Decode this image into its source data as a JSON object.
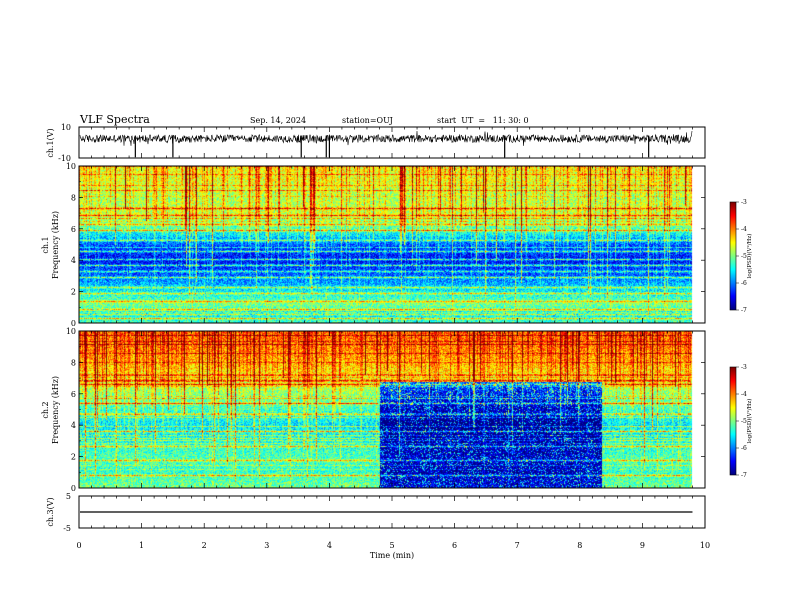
{
  "header": {
    "title": "VLF Spectra",
    "date": "Sep. 14, 2024",
    "station": "station=OUJ",
    "start": "start  UT  =   11: 30: 0"
  },
  "chart_data": [
    {
      "type": "line",
      "id": "ch1-waveform",
      "ylabel": "ch.1(V)",
      "yticks": [
        "10",
        "-10"
      ],
      "ylim": [
        -10,
        10
      ],
      "xlim": [
        0,
        10
      ],
      "baseline": 2.5,
      "spikes_min": [
        0.9,
        1.5,
        3.55,
        3.95,
        4.0,
        6.8,
        9.1
      ],
      "data_end_min": 9.8
    },
    {
      "type": "heatmap",
      "id": "ch1-spectrogram",
      "ylabel": "ch.1\nFrequency (kHz)",
      "ylabel_line1": "ch.1",
      "ylabel_line2": "Frequency (kHz)",
      "yticks": [
        "0",
        "2",
        "4",
        "6",
        "8",
        "10"
      ],
      "ylim": [
        0,
        10
      ],
      "xlim": [
        0,
        10
      ],
      "data_end_min": 9.8,
      "colorbar": {
        "label": "log(PSD)(V²/Hz)",
        "ticks": [
          "-3",
          "-4",
          "-5",
          "-6",
          "-7"
        ],
        "range": [
          -7,
          -3
        ]
      },
      "profile_khz": [
        [
          0,
          -5.2
        ],
        [
          0.6,
          -5.6
        ],
        [
          1.2,
          -5.0
        ],
        [
          2.0,
          -5.5
        ],
        [
          3.0,
          -6.1
        ],
        [
          4.0,
          -6.5
        ],
        [
          5.0,
          -6.2
        ],
        [
          6.0,
          -5.3
        ],
        [
          7.0,
          -4.8
        ],
        [
          8.0,
          -4.9
        ],
        [
          9.0,
          -4.7
        ],
        [
          10.0,
          -4.6
        ]
      ],
      "tones_khz": [
        0.3,
        0.6,
        0.9,
        1.4,
        1.9,
        2.3,
        2.9,
        3.3,
        3.7,
        4.1,
        4.6,
        5.3,
        5.9,
        6.3,
        6.9,
        7.3
      ]
    },
    {
      "type": "heatmap",
      "id": "ch2-spectrogram",
      "ylabel": "ch.2\nFrequency (kHz)",
      "ylabel_line1": "ch.2",
      "ylabel_line2": "Frequency (kHz)",
      "yticks": [
        "0",
        "2",
        "4",
        "6",
        "8",
        "10"
      ],
      "ylim": [
        0,
        10
      ],
      "xlim": [
        0,
        10
      ],
      "data_end_min": 9.8,
      "colorbar": {
        "label": "log(PSD)(V²/Hz)",
        "ticks": [
          "-3",
          "-4",
          "-5",
          "-6",
          "-7"
        ],
        "range": [
          -7,
          -3
        ]
      },
      "profile_khz": [
        [
          0,
          -5.0
        ],
        [
          1.0,
          -5.3
        ],
        [
          2.0,
          -5.2
        ],
        [
          3.0,
          -5.4
        ],
        [
          4.0,
          -5.6
        ],
        [
          5.0,
          -5.3
        ],
        [
          6.0,
          -5.0
        ],
        [
          7.0,
          -4.6
        ],
        [
          8.0,
          -4.3
        ],
        [
          9.0,
          -4.1
        ],
        [
          10.0,
          -4.0
        ]
      ],
      "quiet_window_min": [
        4.8,
        8.35
      ],
      "quiet_window_top_khz": 6.8,
      "tones_khz": [
        0.8,
        1.8,
        2.7,
        3.6,
        4.7,
        5.4,
        6.6,
        6.9
      ]
    },
    {
      "type": "line",
      "id": "ch3-waveform",
      "ylabel": "ch.3(V)",
      "yticks": [
        "5",
        "-5"
      ],
      "ylim": [
        -5,
        5
      ],
      "xlim": [
        0,
        10
      ],
      "baseline": 0,
      "data_end_min": 9.8
    }
  ],
  "xaxis": {
    "label": "Time (min)",
    "ticks": [
      "0",
      "1",
      "2",
      "3",
      "4",
      "5",
      "6",
      "7",
      "8",
      "9",
      "10"
    ],
    "range": [
      0,
      10
    ]
  }
}
